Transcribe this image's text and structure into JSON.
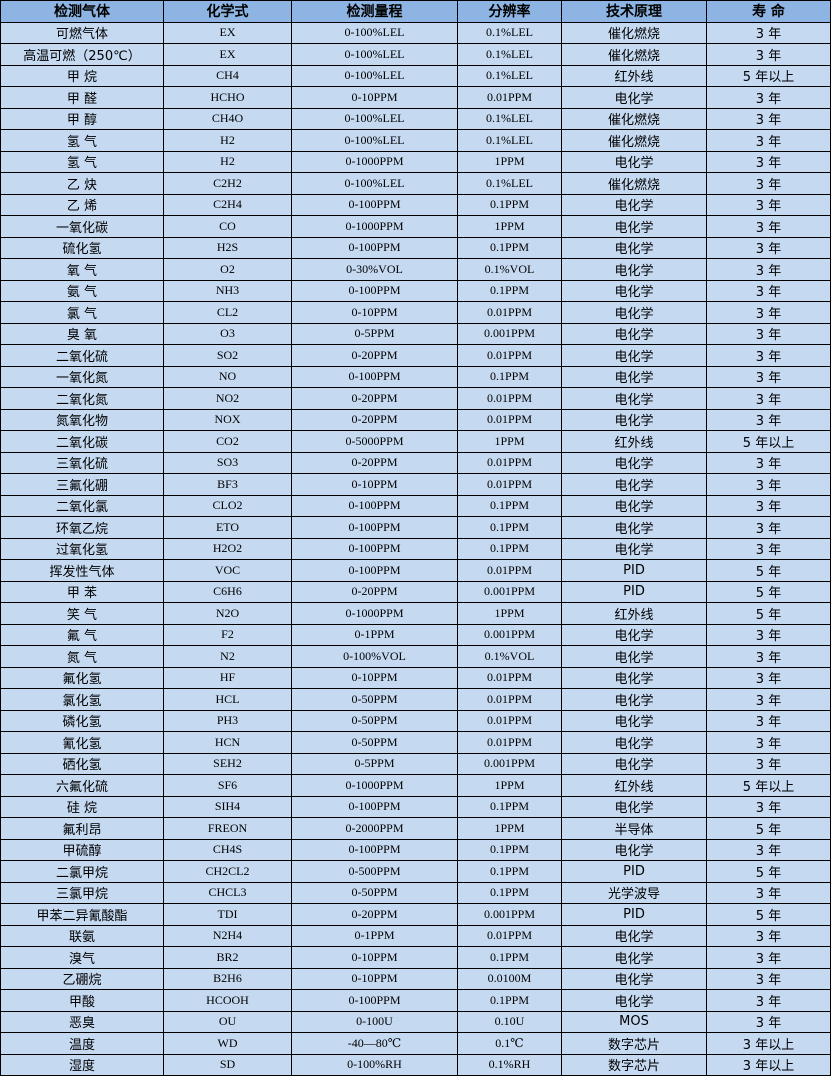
{
  "colors": {
    "header_bg": "#8db4e2",
    "row_bg": "#c5d9f1",
    "border": "#000000"
  },
  "table": {
    "headers": [
      "检测气体",
      "化学式",
      "检测量程",
      "分辨率",
      "技术原理",
      "寿 命"
    ],
    "rows": [
      [
        "可燃气体",
        "EX",
        "0-100%LEL",
        "0.1%LEL",
        "催化燃烧",
        "3 年"
      ],
      [
        "高温可燃（250℃）",
        "EX",
        "0-100%LEL",
        "0.1%LEL",
        "催化燃烧",
        "3 年"
      ],
      [
        "甲 烷",
        "CH4",
        "0-100%LEL",
        "0.1%LEL",
        "红外线",
        "5 年以上"
      ],
      [
        "甲 醛",
        "HCHO",
        "0-10PPM",
        "0.01PPM",
        "电化学",
        "3 年"
      ],
      [
        "甲 醇",
        "CH4O",
        "0-100%LEL",
        "0.1%LEL",
        "催化燃烧",
        "3 年"
      ],
      [
        "氢 气",
        "H2",
        "0-100%LEL",
        "0.1%LEL",
        "催化燃烧",
        "3 年"
      ],
      [
        "氢 气",
        "H2",
        "0-1000PPM",
        "1PPM",
        "电化学",
        "3 年"
      ],
      [
        "乙 炔",
        "C2H2",
        "0-100%LEL",
        "0.1%LEL",
        "催化燃烧",
        "3 年"
      ],
      [
        "乙 烯",
        "C2H4",
        "0-100PPM",
        "0.1PPM",
        "电化学",
        "3 年"
      ],
      [
        "一氧化碳",
        "CO",
        "0-1000PPM",
        "1PPM",
        "电化学",
        "3 年"
      ],
      [
        "硫化氢",
        "H2S",
        "0-100PPM",
        "0.1PPM",
        "电化学",
        "3 年"
      ],
      [
        "氧 气",
        "O2",
        "0-30%VOL",
        "0.1%VOL",
        "电化学",
        "3 年"
      ],
      [
        "氨 气",
        "NH3",
        "0-100PPM",
        "0.1PPM",
        "电化学",
        "3 年"
      ],
      [
        "氯 气",
        "CL2",
        "0-10PPM",
        "0.01PPM",
        "电化学",
        "3 年"
      ],
      [
        "臭 氧",
        "O3",
        "0-5PPM",
        "0.001PPM",
        "电化学",
        "3 年"
      ],
      [
        "二氧化硫",
        "SO2",
        "0-20PPM",
        "0.01PPM",
        "电化学",
        "3 年"
      ],
      [
        "一氧化氮",
        "NO",
        "0-100PPM",
        "0.1PPM",
        "电化学",
        "3 年"
      ],
      [
        "二氧化氮",
        "NO2",
        "0-20PPM",
        "0.01PPM",
        "电化学",
        "3 年"
      ],
      [
        "氮氧化物",
        "NOX",
        "0-20PPM",
        "0.01PPM",
        "电化学",
        "3 年"
      ],
      [
        "二氧化碳",
        "CO2",
        "0-5000PPM",
        "1PPM",
        "红外线",
        "5 年以上"
      ],
      [
        "三氧化硫",
        "SO3",
        "0-20PPM",
        "0.01PPM",
        "电化学",
        "3 年"
      ],
      [
        "三氟化硼",
        "BF3",
        "0-10PPM",
        "0.01PPM",
        "电化学",
        "3 年"
      ],
      [
        "二氧化氯",
        "CLO2",
        "0-100PPM",
        "0.1PPM",
        "电化学",
        "3 年"
      ],
      [
        "环氧乙烷",
        "ETO",
        "0-100PPM",
        "0.1PPM",
        "电化学",
        "3 年"
      ],
      [
        "过氧化氢",
        "H2O2",
        "0-100PPM",
        "0.1PPM",
        "电化学",
        "3 年"
      ],
      [
        "挥发性气体",
        "VOC",
        "0-100PPM",
        "0.01PPM",
        "PID",
        "5 年"
      ],
      [
        "甲 苯",
        "C6H6",
        "0-20PPM",
        "0.001PPM",
        "PID",
        "5 年"
      ],
      [
        "笑 气",
        "N2O",
        "0-1000PPM",
        "1PPM",
        "红外线",
        "5 年"
      ],
      [
        "氟 气",
        "F2",
        "0-1PPM",
        "0.001PPM",
        "电化学",
        "3 年"
      ],
      [
        "氮 气",
        "N2",
        "0-100%VOL",
        "0.1%VOL",
        "电化学",
        "3 年"
      ],
      [
        "氟化氢",
        "HF",
        "0-10PPM",
        "0.01PPM",
        "电化学",
        "3 年"
      ],
      [
        "氯化氢",
        "HCL",
        "0-50PPM",
        "0.01PPM",
        "电化学",
        "3 年"
      ],
      [
        "磷化氢",
        "PH3",
        "0-50PPM",
        "0.01PPM",
        "电化学",
        "3 年"
      ],
      [
        "氰化氢",
        "HCN",
        "0-50PPM",
        "0.01PPM",
        "电化学",
        "3 年"
      ],
      [
        "硒化氢",
        "SEH2",
        "0-5PPM",
        "0.001PPM",
        "电化学",
        "3 年"
      ],
      [
        "六氟化硫",
        "SF6",
        "0-1000PPM",
        "1PPM",
        "红外线",
        "5 年以上"
      ],
      [
        "硅 烷",
        "SIH4",
        "0-100PPM",
        "0.1PPM",
        "电化学",
        "3 年"
      ],
      [
        "氟利昂",
        "FREON",
        "0-2000PPM",
        "1PPM",
        "半导体",
        "5 年"
      ],
      [
        "甲硫醇",
        "CH4S",
        "0-100PPM",
        "0.1PPM",
        "电化学",
        "3 年"
      ],
      [
        "二氯甲烷",
        "CH2CL2",
        "0-500PPM",
        "0.1PPM",
        "PID",
        "5 年"
      ],
      [
        "三氯甲烷",
        "CHCL3",
        "0-50PPM",
        "0.1PPM",
        "光学波导",
        "3 年"
      ],
      [
        "甲苯二异氰酸酯",
        "TDI",
        "0-20PPM",
        "0.001PPM",
        "PID",
        "5 年"
      ],
      [
        "联氨",
        "N2H4",
        "0-1PPM",
        "0.01PPM",
        "电化学",
        "3 年"
      ],
      [
        "溴气",
        "BR2",
        "0-10PPM",
        "0.1PPM",
        "电化学",
        "3 年"
      ],
      [
        "乙硼烷",
        "B2H6",
        "0-10PPM",
        "0.0100M",
        "电化学",
        "3 年"
      ],
      [
        "甲酸",
        "HCOOH",
        "0-100PPM",
        "0.1PPM",
        "电化学",
        "3 年"
      ],
      [
        "恶臭",
        "OU",
        "0-100U",
        "0.10U",
        "MOS",
        "3 年"
      ],
      [
        "温度",
        "WD",
        "-40—80℃",
        "0.1℃",
        "数字芯片",
        "3 年以上"
      ],
      [
        "湿度",
        "SD",
        "0-100%RH",
        "0.1%RH",
        "数字芯片",
        "3 年以上"
      ]
    ]
  }
}
